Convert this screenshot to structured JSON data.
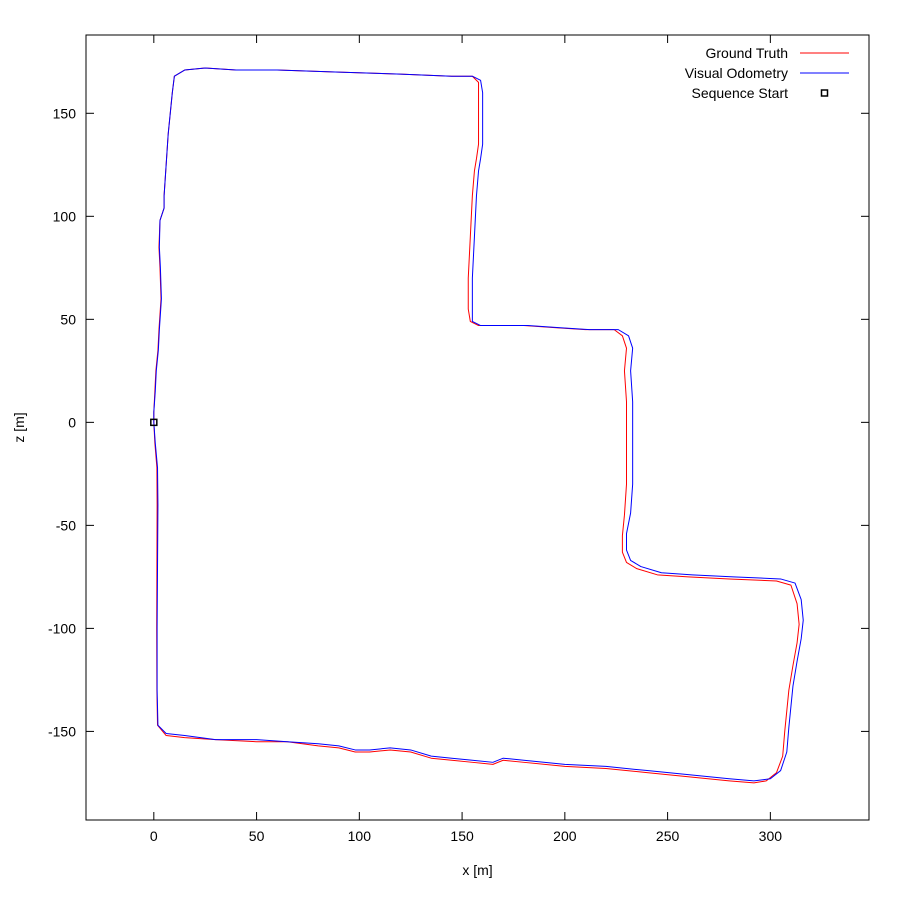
{
  "chart_data": {
    "type": "line",
    "title": "",
    "xlabel": "x [m]",
    "ylabel": "z [m]",
    "xlim": [
      -33,
      348
    ],
    "ylim": [
      -193,
      188
    ],
    "xticks": [
      0,
      50,
      100,
      150,
      200,
      250,
      300
    ],
    "yticks": [
      -150,
      -100,
      -50,
      0,
      50,
      100,
      150
    ],
    "grid": false,
    "legend_position": "top-right",
    "series": [
      {
        "name": "Ground Truth",
        "color": "#ff0000",
        "points": [
          [
            0,
            0
          ],
          [
            0.5,
            -10
          ],
          [
            1.5,
            -22
          ],
          [
            1.6,
            -40
          ],
          [
            1.5,
            -70
          ],
          [
            1.4,
            -100
          ],
          [
            1.5,
            -130
          ],
          [
            1.8,
            -147
          ],
          [
            6,
            -152
          ],
          [
            15,
            -153
          ],
          [
            30,
            -154
          ],
          [
            50,
            -155
          ],
          [
            65,
            -155
          ],
          [
            80,
            -157
          ],
          [
            90,
            -158
          ],
          [
            98,
            -160
          ],
          [
            105,
            -160
          ],
          [
            115,
            -159
          ],
          [
            125,
            -160
          ],
          [
            135,
            -163
          ],
          [
            145,
            -164
          ],
          [
            155,
            -165
          ],
          [
            165,
            -166
          ],
          [
            170,
            -164
          ],
          [
            180,
            -165
          ],
          [
            200,
            -167
          ],
          [
            220,
            -168
          ],
          [
            240,
            -170
          ],
          [
            260,
            -172
          ],
          [
            280,
            -174
          ],
          [
            292,
            -175
          ],
          [
            298,
            -174
          ],
          [
            303,
            -170
          ],
          [
            306,
            -162
          ],
          [
            307,
            -150
          ],
          [
            309,
            -130
          ],
          [
            311,
            -118
          ],
          [
            313,
            -107
          ],
          [
            314,
            -98
          ],
          [
            313,
            -88
          ],
          [
            310,
            -79
          ],
          [
            303,
            -77
          ],
          [
            280,
            -76
          ],
          [
            260,
            -75
          ],
          [
            245,
            -74
          ],
          [
            235,
            -71
          ],
          [
            230,
            -68
          ],
          [
            228,
            -63
          ],
          [
            228,
            -55
          ],
          [
            229,
            -45
          ],
          [
            230,
            -30
          ],
          [
            230,
            -10
          ],
          [
            230,
            10
          ],
          [
            229,
            25
          ],
          [
            230,
            36
          ],
          [
            228,
            42
          ],
          [
            224,
            45
          ],
          [
            210,
            45
          ],
          [
            195,
            46
          ],
          [
            180,
            47
          ],
          [
            165,
            47
          ],
          [
            158,
            47
          ],
          [
            154,
            49
          ],
          [
            153,
            55
          ],
          [
            153,
            70
          ],
          [
            154,
            90
          ],
          [
            155,
            110
          ],
          [
            156,
            122
          ],
          [
            157,
            128
          ],
          [
            158,
            135
          ],
          [
            158,
            150
          ],
          [
            158,
            160
          ],
          [
            158,
            165
          ],
          [
            155,
            168
          ],
          [
            145,
            168
          ],
          [
            120,
            169
          ],
          [
            90,
            170
          ],
          [
            60,
            171
          ],
          [
            40,
            171
          ],
          [
            25,
            172
          ],
          [
            15,
            171
          ],
          [
            10,
            168
          ],
          [
            9,
            160
          ],
          [
            8,
            150
          ],
          [
            7,
            140
          ],
          [
            6,
            125
          ],
          [
            5,
            110
          ],
          [
            5,
            104
          ],
          [
            3,
            98
          ],
          [
            2.5,
            85
          ],
          [
            3,
            75
          ],
          [
            3.5,
            60
          ],
          [
            2.5,
            45
          ],
          [
            2,
            35
          ],
          [
            1,
            25
          ],
          [
            0.5,
            15
          ],
          [
            0,
            5
          ],
          [
            0,
            0
          ]
        ]
      },
      {
        "name": "Visual Odometry",
        "color": "#0000ff",
        "points": [
          [
            0,
            0
          ],
          [
            0.7,
            -10
          ],
          [
            1.8,
            -22
          ],
          [
            2,
            -40
          ],
          [
            1.8,
            -70
          ],
          [
            1.6,
            -100
          ],
          [
            1.6,
            -130
          ],
          [
            2,
            -147
          ],
          [
            6,
            -151
          ],
          [
            15,
            -152
          ],
          [
            30,
            -154
          ],
          [
            50,
            -154
          ],
          [
            65,
            -155
          ],
          [
            80,
            -156
          ],
          [
            90,
            -157
          ],
          [
            98,
            -159
          ],
          [
            105,
            -159
          ],
          [
            115,
            -158
          ],
          [
            125,
            -159
          ],
          [
            135,
            -162
          ],
          [
            145,
            -163
          ],
          [
            155,
            -164
          ],
          [
            165,
            -165
          ],
          [
            170,
            -163
          ],
          [
            180,
            -164
          ],
          [
            200,
            -166
          ],
          [
            220,
            -167
          ],
          [
            240,
            -169
          ],
          [
            260,
            -171
          ],
          [
            280,
            -173
          ],
          [
            292,
            -174
          ],
          [
            300,
            -173
          ],
          [
            305,
            -169
          ],
          [
            308,
            -160
          ],
          [
            309,
            -148
          ],
          [
            311,
            -128
          ],
          [
            313,
            -116
          ],
          [
            315,
            -105
          ],
          [
            316,
            -96
          ],
          [
            315,
            -86
          ],
          [
            312,
            -78
          ],
          [
            305,
            -76
          ],
          [
            282,
            -75
          ],
          [
            262,
            -74
          ],
          [
            247,
            -73
          ],
          [
            237,
            -70
          ],
          [
            232,
            -67
          ],
          [
            230,
            -62
          ],
          [
            230,
            -54
          ],
          [
            232,
            -44
          ],
          [
            233,
            -30
          ],
          [
            233,
            -10
          ],
          [
            233,
            10
          ],
          [
            232,
            25
          ],
          [
            233,
            36
          ],
          [
            231,
            42
          ],
          [
            226,
            45
          ],
          [
            212,
            45
          ],
          [
            197,
            46
          ],
          [
            182,
            47
          ],
          [
            167,
            47
          ],
          [
            159,
            47
          ],
          [
            155,
            49
          ],
          [
            155,
            55
          ],
          [
            155,
            70
          ],
          [
            156,
            90
          ],
          [
            157,
            110
          ],
          [
            158,
            122
          ],
          [
            159,
            128
          ],
          [
            160,
            135
          ],
          [
            160,
            150
          ],
          [
            160,
            160
          ],
          [
            159,
            166
          ],
          [
            155,
            168
          ],
          [
            145,
            168
          ],
          [
            120,
            169
          ],
          [
            90,
            170
          ],
          [
            60,
            171
          ],
          [
            40,
            171
          ],
          [
            25,
            172
          ],
          [
            15,
            171
          ],
          [
            10,
            168
          ],
          [
            9,
            160
          ],
          [
            8,
            150
          ],
          [
            7,
            140
          ],
          [
            6,
            125
          ],
          [
            5,
            110
          ],
          [
            5,
            104
          ],
          [
            3,
            98
          ],
          [
            2.7,
            85
          ],
          [
            3.2,
            75
          ],
          [
            3.7,
            60
          ],
          [
            2.7,
            45
          ],
          [
            2.2,
            35
          ],
          [
            1.2,
            25
          ],
          [
            0.7,
            15
          ],
          [
            0,
            5
          ],
          [
            0,
            0
          ]
        ]
      },
      {
        "name": "Sequence Start",
        "color": "#000000",
        "marker": "open-square",
        "points": [
          [
            0,
            0
          ]
        ]
      }
    ]
  }
}
